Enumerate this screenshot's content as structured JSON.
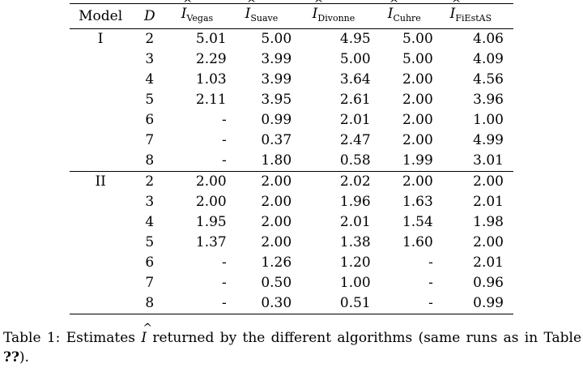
{
  "table": {
    "headers": {
      "model": "Model",
      "d": "D",
      "vegas_sub": "Vegas",
      "suave_sub": "Suave",
      "divonne_sub": "Divonne",
      "cuhre_sub": "Cuhre",
      "fiestas_sub": "FiEstAS",
      "estimate_symbol": "I",
      "hat_symbol": "^"
    },
    "groups": [
      {
        "model": "I",
        "rows": [
          {
            "d": "2",
            "vegas": "5.01",
            "suave": "5.00",
            "divonne": "4.95",
            "cuhre": "5.00",
            "fiestas": "4.06"
          },
          {
            "d": "3",
            "vegas": "2.29",
            "suave": "3.99",
            "divonne": "5.00",
            "cuhre": "5.00",
            "fiestas": "4.09"
          },
          {
            "d": "4",
            "vegas": "1.03",
            "suave": "3.99",
            "divonne": "3.64",
            "cuhre": "2.00",
            "fiestas": "4.56"
          },
          {
            "d": "5",
            "vegas": "2.11",
            "suave": "3.95",
            "divonne": "2.61",
            "cuhre": "2.00",
            "fiestas": "3.96"
          },
          {
            "d": "6",
            "vegas": "-",
            "suave": "0.99",
            "divonne": "2.01",
            "cuhre": "2.00",
            "fiestas": "1.00"
          },
          {
            "d": "7",
            "vegas": "-",
            "suave": "0.37",
            "divonne": "2.47",
            "cuhre": "2.00",
            "fiestas": "4.99"
          },
          {
            "d": "8",
            "vegas": "-",
            "suave": "1.80",
            "divonne": "0.58",
            "cuhre": "1.99",
            "fiestas": "3.01"
          }
        ]
      },
      {
        "model": "II",
        "rows": [
          {
            "d": "2",
            "vegas": "2.00",
            "suave": "2.00",
            "divonne": "2.02",
            "cuhre": "2.00",
            "fiestas": "2.00"
          },
          {
            "d": "3",
            "vegas": "2.00",
            "suave": "2.00",
            "divonne": "1.96",
            "cuhre": "1.63",
            "fiestas": "2.01"
          },
          {
            "d": "4",
            "vegas": "1.95",
            "suave": "2.00",
            "divonne": "2.01",
            "cuhre": "1.54",
            "fiestas": "1.98"
          },
          {
            "d": "5",
            "vegas": "1.37",
            "suave": "2.00",
            "divonne": "1.38",
            "cuhre": "1.60",
            "fiestas": "2.00"
          },
          {
            "d": "6",
            "vegas": "-",
            "suave": "1.26",
            "divonne": "1.20",
            "cuhre": "-",
            "fiestas": "2.01"
          },
          {
            "d": "7",
            "vegas": "-",
            "suave": "0.50",
            "divonne": "1.00",
            "cuhre": "-",
            "fiestas": "0.96"
          },
          {
            "d": "8",
            "vegas": "-",
            "suave": "0.30",
            "divonne": "0.51",
            "cuhre": "-",
            "fiestas": "0.99"
          }
        ]
      }
    ]
  },
  "caption": {
    "label": "Table 1:",
    "text_before": "Estimates",
    "text_after": "returned by the different algorithms (same runs as in Table",
    "ref": "??",
    "end": ")."
  }
}
